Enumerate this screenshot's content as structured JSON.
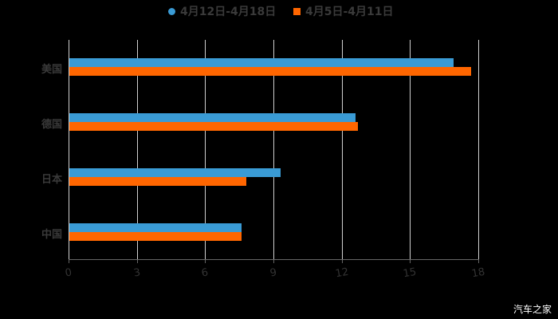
{
  "chart_data": {
    "type": "bar",
    "orientation": "horizontal",
    "title": "",
    "categories": [
      "美国",
      "德国",
      "日本",
      "中国"
    ],
    "series": [
      {
        "name": "4月12日-4月18日",
        "color": "#3a9bd5",
        "values": [
          16.9,
          12.6,
          9.3,
          7.6
        ]
      },
      {
        "name": "4月5日-4月11日",
        "color": "#ff6600",
        "values": [
          17.7,
          12.7,
          7.8,
          7.6
        ]
      }
    ],
    "xlabel": "",
    "ylabel": "",
    "xlim": [
      0,
      18
    ],
    "xticks": [
      "0",
      "3",
      "6",
      "9",
      "12",
      "15",
      "18"
    ],
    "grid": true,
    "legend_position": "top"
  },
  "legend": [
    {
      "label": "4月12日-4月18日",
      "color": "#3a9bd5",
      "marker": "circle"
    },
    {
      "label": "4月5日-4月11日",
      "color": "#ff6600",
      "marker": "square"
    }
  ],
  "watermark": "汽车之家"
}
